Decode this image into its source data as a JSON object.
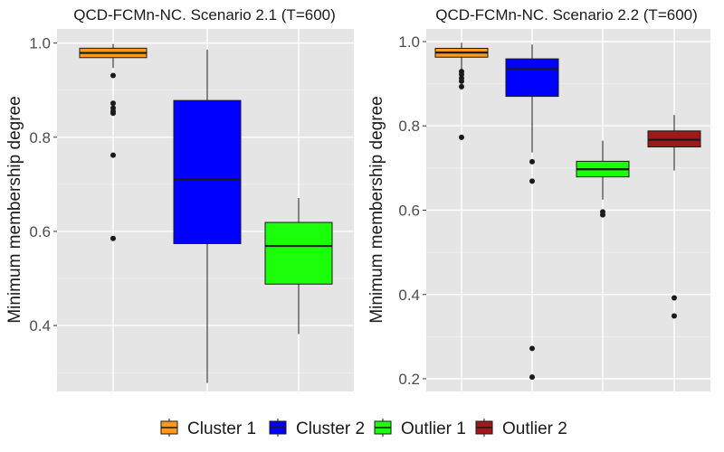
{
  "chart_data": [
    {
      "type": "boxplot",
      "title": "QCD-FCMn-NC. Scenario 2.1 (T=600)",
      "ylabel": "Minimum membership degree",
      "xlabel": "",
      "ylim": [
        0.26,
        1.03
      ],
      "yticks": [
        0.4,
        0.6,
        0.8,
        1.0
      ],
      "ytick_labels": [
        "0.4",
        "0.6",
        "0.8",
        "1.0"
      ],
      "boxes": [
        {
          "group": "Cluster 1",
          "q1": 0.969,
          "median": 0.979,
          "q3": 0.989,
          "whisker_low": 0.947,
          "whisker_high": 0.998,
          "outliers": [
            0.931,
            0.872,
            0.862,
            0.855,
            0.851,
            0.762,
            0.585
          ]
        },
        {
          "group": "Cluster 2",
          "q1": 0.574,
          "median": 0.711,
          "q3": 0.878,
          "whisker_low": 0.278,
          "whisker_high": 0.986,
          "outliers": []
        },
        {
          "group": "Outlier 1",
          "q1": 0.488,
          "median": 0.569,
          "q3": 0.619,
          "whisker_low": 0.382,
          "whisker_high": 0.671,
          "outliers": []
        }
      ]
    },
    {
      "type": "boxplot",
      "title": "QCD-FCMn-NC. Scenario 2.2 (T=600)",
      "ylabel": "Minimum membership degree",
      "xlabel": "",
      "ylim": [
        0.17,
        1.03
      ],
      "yticks": [
        0.2,
        0.4,
        0.6,
        0.8,
        1.0
      ],
      "ytick_labels": [
        "0.2",
        "0.4",
        "0.6",
        "0.8",
        "1.0"
      ],
      "boxes": [
        {
          "group": "Cluster 1",
          "q1": 0.963,
          "median": 0.974,
          "q3": 0.984,
          "whisker_low": 0.934,
          "whisker_high": 0.997,
          "outliers": [
            0.929,
            0.922,
            0.913,
            0.906,
            0.893,
            0.773
          ]
        },
        {
          "group": "Cluster 2",
          "q1": 0.87,
          "median": 0.936,
          "q3": 0.959,
          "whisker_low": 0.737,
          "whisker_high": 0.993,
          "outliers": [
            0.715,
            0.669,
            0.272,
            0.204
          ]
        },
        {
          "group": "Outlier 1",
          "q1": 0.679,
          "median": 0.697,
          "q3": 0.716,
          "whisker_low": 0.625,
          "whisker_high": 0.765,
          "outliers": [
            0.596,
            0.589
          ]
        },
        {
          "group": "Outlier 2",
          "q1": 0.75,
          "median": 0.767,
          "q3": 0.788,
          "whisker_low": 0.694,
          "whisker_high": 0.826,
          "outliers": [
            0.392,
            0.349
          ]
        }
      ]
    }
  ],
  "legend": {
    "position": "bottom",
    "items": [
      {
        "label": "Cluster 1",
        "color": "#ff9a1a"
      },
      {
        "label": "Cluster 2",
        "color": "#0000ff"
      },
      {
        "label": "Outlier 1",
        "color": "#1cff0a"
      },
      {
        "label": "Outlier 2",
        "color": "#9e1a1a"
      }
    ]
  },
  "colors": {
    "panel_bg": "#e5e5e5",
    "grid_major": "#ffffff",
    "grid_minor": "#f2f2f2",
    "outline": "#1a1a1a"
  }
}
